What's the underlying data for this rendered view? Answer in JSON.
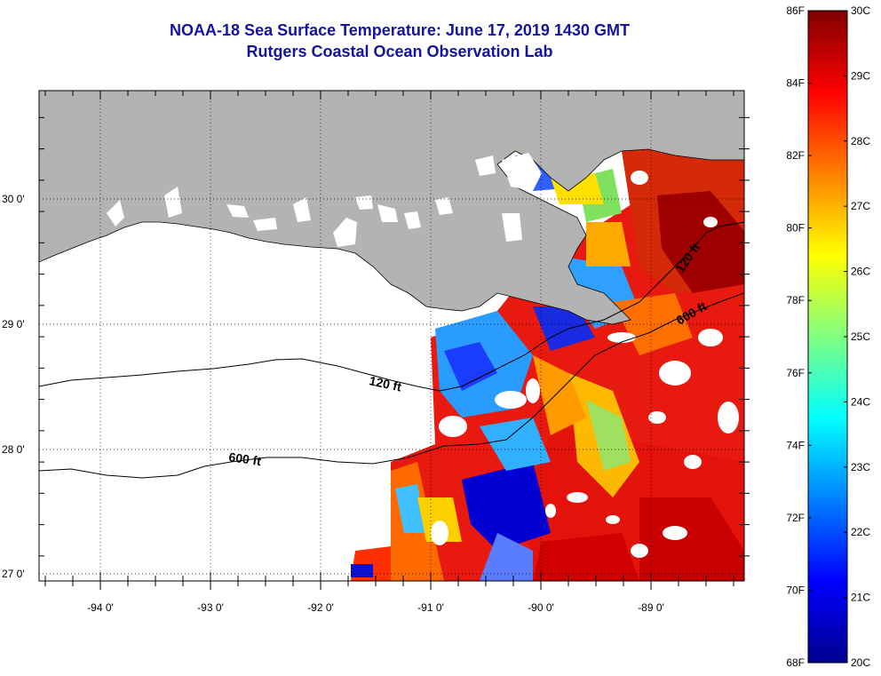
{
  "header": {
    "title": "NOAA-18 Sea Surface Temperature:  June 17, 2019 1430 GMT",
    "subtitle": "Rutgers Coastal Ocean Observation Lab"
  },
  "map": {
    "lon_labels": [
      "-94 0'",
      "-93 0'",
      "-92 0'",
      "-91 0'",
      "-90 0'",
      "-89 0'"
    ],
    "lat_labels": [
      "30 0'",
      "29 0'",
      "28 0'",
      "27 0'"
    ],
    "contour_labels": [
      "120 ft",
      "600 ft",
      "120 ft",
      "600 ft"
    ],
    "land_color": "#b3b3b3",
    "missing_color": "#ffffff"
  },
  "colorbar": {
    "fahrenheit": [
      "86F",
      "84F",
      "82F",
      "80F",
      "78F",
      "76F",
      "74F",
      "72F",
      "70F",
      "68F"
    ],
    "celsius": [
      "30C",
      "29C",
      "28C",
      "27C",
      "26C",
      "25C",
      "24C",
      "23C",
      "22C",
      "21C",
      "20C"
    ],
    "colors": [
      "#00008f",
      "#0000ff",
      "#0080ff",
      "#00ffff",
      "#80ff80",
      "#ffff00",
      "#ff8000",
      "#ff0000",
      "#800000"
    ]
  }
}
